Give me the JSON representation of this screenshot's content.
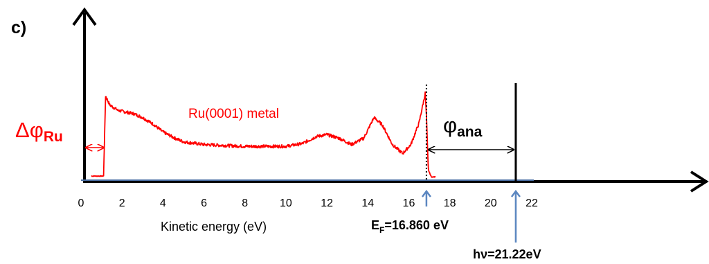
{
  "chart_data": {
    "type": "line",
    "panel_label": "c)",
    "xlabel": "Kinetic energy (eV)",
    "ylabel": "",
    "xlim": [
      0,
      22
    ],
    "x_ticks": [
      0,
      2,
      4,
      6,
      8,
      10,
      12,
      14,
      16,
      18,
      20,
      22
    ],
    "series": [
      {
        "name": "Ru(0001) metal",
        "color": "#ff0000",
        "points": [
          [
            0.5,
            0.03
          ],
          [
            0.9,
            0.03
          ],
          [
            1.1,
            0.03
          ],
          [
            1.15,
            0.45
          ],
          [
            1.2,
            0.92
          ],
          [
            1.4,
            0.82
          ],
          [
            1.8,
            0.76
          ],
          [
            2.2,
            0.74
          ],
          [
            2.6,
            0.72
          ],
          [
            3.0,
            0.68
          ],
          [
            3.5,
            0.61
          ],
          [
            4.0,
            0.52
          ],
          [
            4.5,
            0.46
          ],
          [
            5.0,
            0.41
          ],
          [
            6.0,
            0.38
          ],
          [
            7.0,
            0.37
          ],
          [
            8.0,
            0.36
          ],
          [
            9.0,
            0.36
          ],
          [
            10.0,
            0.36
          ],
          [
            10.8,
            0.39
          ],
          [
            11.5,
            0.47
          ],
          [
            12.0,
            0.49
          ],
          [
            12.6,
            0.45
          ],
          [
            13.2,
            0.38
          ],
          [
            13.8,
            0.45
          ],
          [
            14.3,
            0.68
          ],
          [
            14.7,
            0.6
          ],
          [
            15.2,
            0.38
          ],
          [
            15.7,
            0.28
          ],
          [
            16.1,
            0.38
          ],
          [
            16.5,
            0.62
          ],
          [
            16.8,
            0.95
          ],
          [
            16.86,
            0.7
          ],
          [
            16.95,
            0.1
          ],
          [
            17.1,
            0.02
          ],
          [
            17.3,
            0.02
          ]
        ]
      }
    ],
    "baseline": {
      "color": "#4a6fa5",
      "x_range": [
        0,
        22.1
      ]
    },
    "annotations": {
      "delta_phi": {
        "symbol": "Δφ",
        "subscript": "Ru"
      },
      "phi_ana": {
        "symbol": "φ",
        "subscript": "ana"
      },
      "fermi": {
        "main": "E",
        "sub": "F",
        "rest": "=16.860 eV",
        "x": 16.86
      },
      "photon": {
        "text": "hν=21.22eV",
        "x": 21.22
      }
    },
    "grid": false,
    "legend": "none"
  },
  "colors": {
    "axis": "#000000",
    "spectrum": "#ff0000",
    "arrow_blue": "#5b86c0",
    "baseline": "#4a6fa5"
  }
}
